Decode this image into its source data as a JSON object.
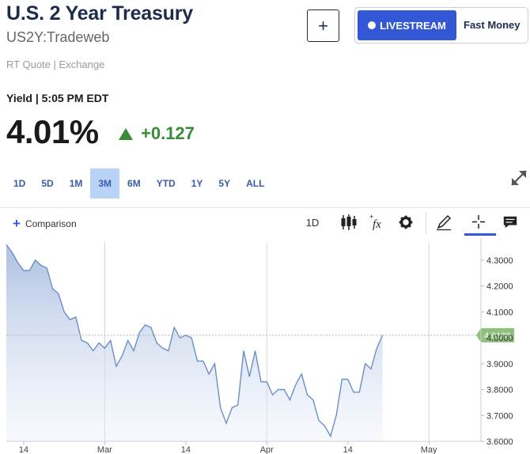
{
  "header": {
    "title": "U.S. 2 Year Treasury",
    "symbol": "US2Y:Tradeweb",
    "add_label": "+",
    "livestream_label": "LIVESTREAM",
    "fast_money_label": "Fast Money",
    "rt_quote": "RT Quote | Exchange"
  },
  "quote": {
    "yield_line": "Yield | 5:05 PM EDT",
    "price": "4.01%",
    "change": "+0.127"
  },
  "ranges": [
    "1D",
    "5D",
    "1M",
    "3M",
    "6M",
    "YTD",
    "1Y",
    "5Y",
    "ALL"
  ],
  "active_range": "3M",
  "toolbar": {
    "comparison_label": "Comparison",
    "interval_label": "1D",
    "icons": [
      "candlestick-icon",
      "function-icon",
      "settings-icon",
      "pencil-icon",
      "crosshair-icon",
      "comment-icon"
    ]
  },
  "colors": {
    "title": "#1d2b4c",
    "accent": "#3457d5",
    "up": "#3a8a3a",
    "line": "#6a8fc7",
    "last_price_tag": "#8fc17e"
  },
  "chart_data": {
    "type": "area",
    "last_value_label": "4.0100",
    "ylim": [
      3.6,
      4.37
    ],
    "y_ticks": [
      "4.3000",
      "4.2000",
      "4.1000",
      "4.0000",
      "3.9000",
      "3.8000",
      "3.7000",
      "3.6000"
    ],
    "x_ticks": [
      "14",
      "Mar",
      "14",
      "Apr",
      "14",
      "May"
    ],
    "x_tick_index": [
      3,
      17,
      31,
      45,
      59,
      73
    ],
    "x_period_lines": [
      17,
      45,
      73
    ],
    "x": [
      0,
      1,
      2,
      3,
      4,
      5,
      6,
      7,
      8,
      9,
      10,
      11,
      12,
      13,
      14,
      15,
      16,
      17,
      18,
      19,
      20,
      21,
      22,
      23,
      24,
      25,
      26,
      27,
      28,
      29,
      30,
      31,
      32,
      33,
      34,
      35,
      36,
      37,
      38,
      39,
      40,
      41,
      42,
      43,
      44,
      45,
      46,
      47,
      48,
      49,
      50,
      51,
      52,
      53,
      54,
      55,
      56,
      57,
      58,
      59,
      60,
      61,
      62,
      63,
      64,
      65,
      66,
      67,
      68,
      69,
      70,
      71,
      72,
      73,
      74,
      75,
      76,
      77,
      78,
      79,
      80,
      81,
      82
    ],
    "series": [
      {
        "values": [
          4.36,
          4.33,
          4.29,
          4.26,
          4.26,
          4.3,
          4.28,
          4.27,
          4.19,
          4.17,
          4.1,
          4.07,
          4.08,
          3.99,
          3.98,
          3.95,
          3.98,
          3.96,
          3.99,
          3.89,
          3.93,
          3.99,
          3.95,
          4.02,
          4.05,
          4.04,
          3.98,
          3.96,
          3.95,
          4.04,
          4.0,
          4.01,
          4.0,
          3.91,
          3.91,
          3.86,
          3.9,
          3.73,
          3.67,
          3.73,
          3.74,
          3.95,
          3.85,
          3.95,
          3.83,
          3.83,
          3.78,
          3.8,
          3.8,
          3.76,
          3.82,
          3.86,
          3.78,
          3.76,
          3.68,
          3.66,
          3.62,
          3.7,
          3.84,
          3.84,
          3.79,
          3.79,
          3.9,
          3.88,
          3.96,
          4.01,
          4.01,
          4.01,
          4.01,
          4.01,
          4.01,
          4.01,
          4.01,
          4.01,
          4.01,
          4.01,
          4.01,
          4.01,
          4.01,
          4.01,
          4.01,
          4.01,
          4.01
        ]
      }
    ]
  }
}
